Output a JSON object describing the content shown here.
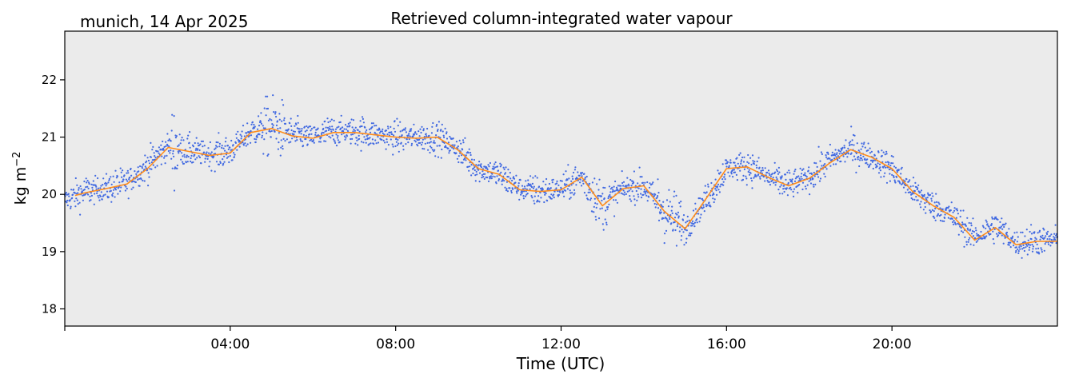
{
  "header": {
    "location_date": "munich, 14 Apr 2025"
  },
  "chart_data": {
    "type": "scatter",
    "title": "Retrieved column-integrated water vapour",
    "xlabel": "Time (UTC)",
    "ylabel": "kg m",
    "ylabel_superscript": "−2",
    "x_unit": "hours UTC",
    "xlim": [
      0,
      24
    ],
    "ylim": [
      17.7,
      22.85
    ],
    "x_ticks": [
      {
        "value": 4,
        "label": "04:00"
      },
      {
        "value": 8,
        "label": "08:00"
      },
      {
        "value": 12,
        "label": "12:00"
      },
      {
        "value": 16,
        "label": "16:00"
      },
      {
        "value": 20,
        "label": "20:00"
      }
    ],
    "y_ticks": [
      18,
      19,
      20,
      21,
      22
    ],
    "grid": false,
    "colors": {
      "background": "#ebebeb",
      "points": "#4169e1",
      "smoothed": "#ff8c1a"
    },
    "series": [
      {
        "kind": "scatter",
        "description_values": "retrieved points (approximate envelope centre)",
        "x": [
          0.0,
          0.5,
          1.0,
          1.5,
          2.0,
          2.5,
          3.0,
          3.5,
          4.0,
          4.5,
          5.0,
          5.5,
          6.0,
          6.5,
          7.0,
          7.5,
          8.0,
          8.5,
          9.0,
          9.5,
          10.0,
          10.5,
          11.0,
          11.5,
          12.0,
          12.5,
          13.0,
          13.5,
          14.0,
          14.5,
          15.0,
          15.5,
          16.0,
          16.5,
          17.0,
          17.5,
          18.0,
          18.5,
          19.0,
          19.5,
          20.0,
          20.5,
          21.0,
          21.5,
          22.0,
          22.5,
          23.0,
          23.5,
          24.0
        ],
        "y": [
          19.9,
          20.05,
          20.1,
          20.2,
          20.5,
          20.85,
          20.75,
          20.7,
          20.75,
          21.1,
          21.2,
          21.05,
          21.0,
          21.1,
          21.1,
          21.05,
          21.0,
          21.0,
          21.0,
          20.8,
          20.45,
          20.35,
          20.1,
          20.05,
          20.1,
          20.3,
          19.8,
          20.1,
          20.15,
          19.7,
          19.4,
          19.9,
          20.45,
          20.5,
          20.3,
          20.15,
          20.3,
          20.6,
          20.8,
          20.65,
          20.45,
          20.05,
          19.8,
          19.6,
          19.25,
          19.45,
          19.15,
          19.2,
          19.2
        ]
      },
      {
        "kind": "line",
        "description_values": "smoothed mean",
        "x": [
          0.25,
          0.5,
          1.0,
          1.5,
          2.0,
          2.5,
          3.0,
          3.5,
          4.0,
          4.5,
          5.0,
          5.5,
          6.0,
          6.5,
          7.0,
          7.5,
          8.0,
          8.5,
          9.0,
          9.5,
          10.0,
          10.5,
          11.0,
          11.5,
          12.0,
          12.5,
          13.0,
          13.5,
          14.0,
          14.5,
          15.0,
          15.5,
          16.0,
          16.5,
          17.0,
          17.5,
          18.0,
          18.5,
          19.0,
          19.5,
          20.0,
          20.5,
          21.0,
          21.5,
          22.0,
          22.5,
          23.0,
          23.5,
          24.0
        ],
        "y": [
          19.98,
          20.03,
          20.1,
          20.18,
          20.45,
          20.82,
          20.75,
          20.68,
          20.72,
          21.08,
          21.15,
          21.02,
          20.98,
          21.08,
          21.08,
          21.04,
          21.0,
          20.98,
          21.0,
          20.78,
          20.45,
          20.35,
          20.08,
          20.05,
          20.08,
          20.3,
          19.8,
          20.1,
          20.15,
          19.7,
          19.4,
          19.92,
          20.45,
          20.48,
          20.3,
          20.15,
          20.28,
          20.55,
          20.78,
          20.65,
          20.45,
          20.05,
          19.8,
          19.6,
          19.2,
          19.42,
          19.12,
          19.18,
          19.18
        ]
      }
    ]
  }
}
